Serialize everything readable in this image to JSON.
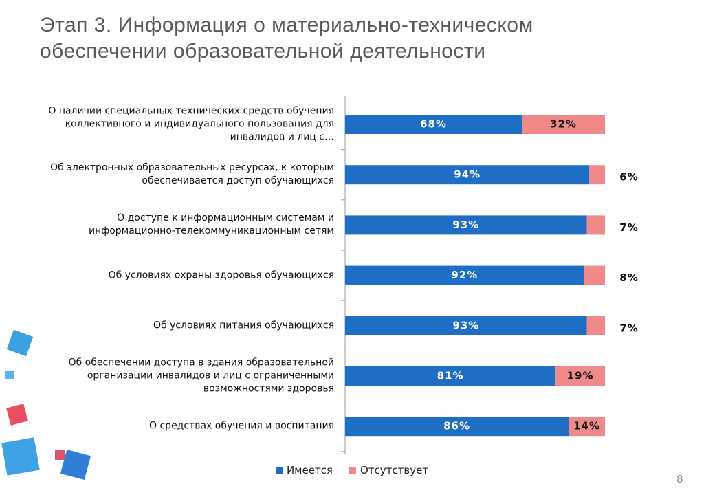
{
  "slide_number": "8",
  "chart_data": {
    "type": "stacked-barh",
    "title": "Этап 3. Информация о материально-техническом обеспечении образовательной деятельности",
    "categories": [
      "О наличии специальных технических средств обучения коллективного и индивидуального пользования для инвалидов и лиц с…",
      "Об электронных образовательных ресурсах, к которым обеспечивается доступ обучающихся",
      "О доступе к информационным системам и информационно-телекоммуникационным сетям",
      "Об условиях охраны здоровья обучающихся",
      "Об условиях питания обучающихся",
      "Об обеспечении доступа в здания образовательной организации инвалидов и лиц с ограниченными возможностями здоровья",
      "О средствах обучения и воспитания"
    ],
    "series": [
      {
        "name": "Имеется",
        "color": "#1f6ec6",
        "values": [
          68,
          94,
          93,
          92,
          93,
          81,
          86
        ],
        "value_labels": [
          "68%",
          "94%",
          "93%",
          "92%",
          "93%",
          "81%",
          "86%"
        ]
      },
      {
        "name": "Отсутствует",
        "color": "#f08a8a",
        "values": [
          32,
          6,
          7,
          8,
          7,
          19,
          14
        ],
        "value_labels": [
          "32%",
          "6%",
          "7%",
          "8%",
          "7%",
          "19%",
          "14%"
        ]
      }
    ]
  }
}
